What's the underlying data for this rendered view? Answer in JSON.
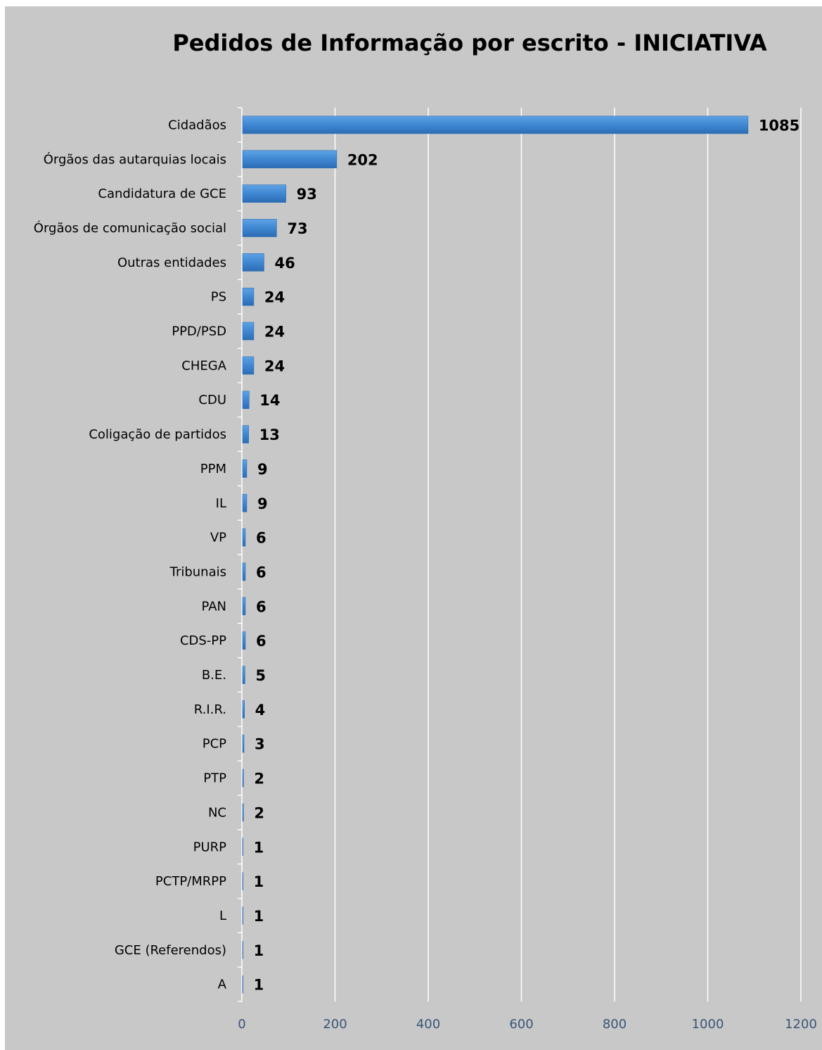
{
  "chart_data": {
    "type": "bar",
    "orientation": "horizontal",
    "title": "Pedidos de Informação por escrito - INICIATIVA",
    "categories": [
      "Cidadãos",
      "Órgãos das autarquias locais",
      "Candidatura de GCE",
      "Órgãos de comunicação social",
      "Outras entidades",
      "PS",
      "PPD/PSD",
      "CHEGA",
      "CDU",
      "Coligação de partidos",
      "PPM",
      "IL",
      "VP",
      "Tribunais",
      "PAN",
      "CDS-PP",
      "B.E.",
      "R.I.R.",
      "PCP",
      "PTP",
      "NC",
      "PURP",
      "PCTP/MRPP",
      "L",
      "GCE (Referendos)",
      "A"
    ],
    "values": [
      1085,
      202,
      93,
      73,
      46,
      24,
      24,
      24,
      14,
      13,
      9,
      9,
      6,
      6,
      6,
      6,
      5,
      4,
      3,
      2,
      2,
      1,
      1,
      1,
      1,
      1
    ],
    "xlim": [
      0,
      1200
    ],
    "xticks": [
      "0",
      "200",
      "400",
      "600",
      "800",
      "1000",
      "1200"
    ],
    "grid": true,
    "legend": false,
    "colors": {
      "background": "#c8c8c8",
      "bar": "#3f87d2",
      "bar_edge": "#2e6fb5",
      "gridline": "#ffffff",
      "tick_label": "#3a5577"
    }
  }
}
